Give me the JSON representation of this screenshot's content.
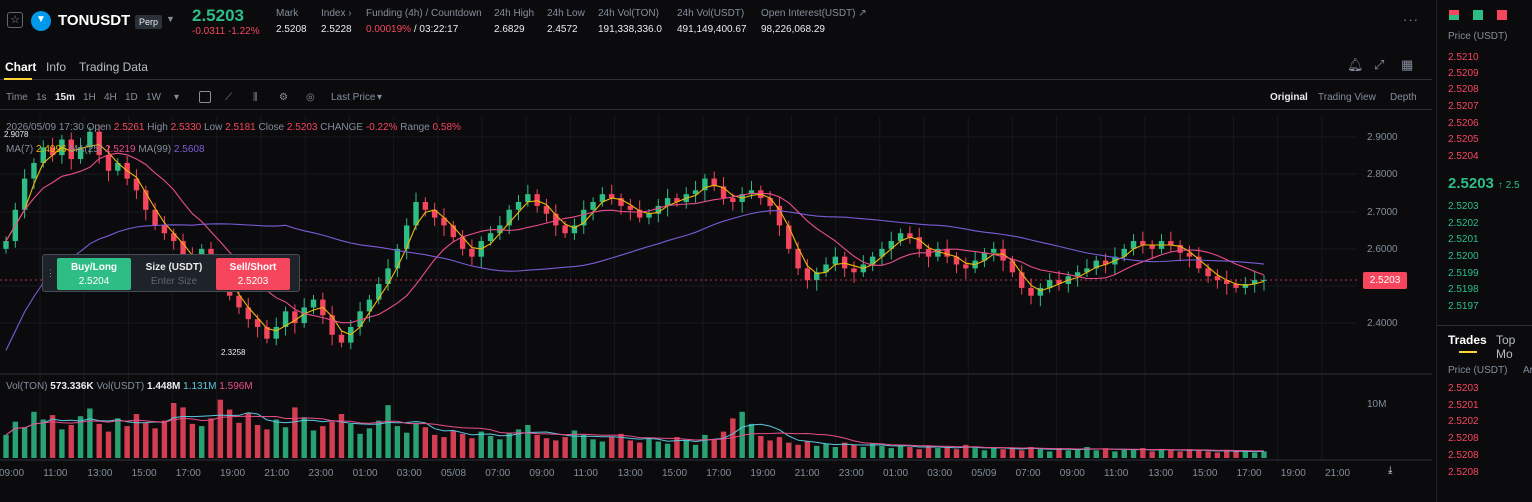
{
  "header": {
    "symbol": "TONUSDT",
    "contract_type": "Perp",
    "last_price": "2.5203",
    "change": "-0.0311 -1.22%",
    "stats": [
      {
        "label": "Mark",
        "value": "2.5208"
      },
      {
        "label": "Index ›",
        "value": "2.5228"
      },
      {
        "label": "Funding (4h) / Countdown",
        "value_rate": "0.00019%",
        "value_countdown": " / 03:22:17"
      },
      {
        "label": "24h High",
        "value": "2.6829"
      },
      {
        "label": "24h Low",
        "value": "2.4572"
      },
      {
        "label": "24h Vol(TON)",
        "value": "191,338,336.0"
      },
      {
        "label": "24h Vol(USDT)",
        "value": "491,149,400.67"
      },
      {
        "label": "Open Interest(USDT) ↗",
        "value": "98,226,068.29"
      }
    ],
    "more": "···"
  },
  "tabs": [
    "Chart",
    "Info",
    "Trading Data"
  ],
  "toolbar": {
    "intervals": [
      "Time",
      "1s",
      "15m",
      "1H",
      "4H",
      "1D",
      "1W"
    ],
    "selected_interval": "15m",
    "price_type": "Last Price",
    "views": [
      "Original",
      "Trading View",
      "Depth"
    ],
    "selected_view": "Original"
  },
  "legend": {
    "ohlc": {
      "date": "2026/05/09 17:30",
      "open_label": "Open",
      "open": "2.5261",
      "high_label": "High",
      "high": "2.5330",
      "low_label": "Low",
      "low": "2.5181",
      "close_label": "Close",
      "close": "2.5203",
      "change_label": "CHANGE",
      "change": "-0.22%",
      "range_label": "Range",
      "range": "0.58%"
    },
    "ma": [
      {
        "label": "MA(7)",
        "value": "2.4996",
        "color": "#f0b90b"
      },
      {
        "label": "MA(25)",
        "value": "2.5219",
        "color": "#e94d8b"
      },
      {
        "label": "MA(99)",
        "value": "2.5608",
        "color": "#7b5cd6"
      }
    ],
    "vol": {
      "ton_label": "Vol(TON)",
      "ton": "573.336K",
      "usdt_label": "Vol(USDT)",
      "usdt": "1.448M",
      "ma1": "1.131M",
      "ma2": "1.596M"
    },
    "high_marker": "2.9078",
    "low_marker": "2.3258"
  },
  "trade_widget": {
    "buy_label": "Buy/Long",
    "buy_price": "2.5204",
    "size_label": "Size (USDT)",
    "size_placeholder": "Enter Size",
    "sell_label": "Sell/Short",
    "sell_price": "2.5203"
  },
  "price_axis": [
    "2.9000",
    "2.8000",
    "2.7000",
    "2.6000",
    "2.5000",
    "2.4000"
  ],
  "current_price_tag": "2.5203",
  "volume_axis": "10M",
  "time_axis": [
    "09:00",
    "11:00",
    "13:00",
    "15:00",
    "17:00",
    "19:00",
    "21:00",
    "23:00",
    "01:00",
    "03:00",
    "05/08",
    "07:00",
    "09:00",
    "11:00",
    "13:00",
    "15:00",
    "17:00",
    "19:00",
    "21:00",
    "23:00",
    "01:00",
    "03:00",
    "05/09",
    "07:00",
    "09:00",
    "11:00",
    "13:00",
    "15:00",
    "17:00",
    "19:00",
    "21:00"
  ],
  "orderbook": {
    "header": "Price (USDT)",
    "asks": [
      "2.5210",
      "2.5209",
      "2.5208",
      "2.5207",
      "2.5206",
      "2.5205",
      "2.5204"
    ],
    "mid": "2.5203",
    "mid_sub": "↑  2.5",
    "bids": [
      "2.5203",
      "2.5202",
      "2.5201",
      "2.5200",
      "2.5199",
      "2.5198",
      "2.5197"
    ]
  },
  "trades": {
    "tabs": [
      "Trades",
      "Top Mo"
    ],
    "header": "Price (USDT)",
    "header2": "Ar",
    "prices": [
      "2.5203",
      "2.5201",
      "2.5202",
      "2.5208",
      "2.5208",
      "2.5208"
    ]
  },
  "chart_data": {
    "type": "candlestick",
    "ylim": [
      2.3,
      2.93
    ],
    "ma_colors": {
      "ma7": "#f0b90b",
      "ma25": "#e94d8b",
      "ma99": "#7b5cd6"
    },
    "colors": {
      "up": "#2ebd85",
      "down": "#f6465d"
    },
    "close_series": [
      2.62,
      2.7,
      2.78,
      2.82,
      2.86,
      2.84,
      2.88,
      2.83,
      2.86,
      2.9,
      2.84,
      2.8,
      2.82,
      2.78,
      2.75,
      2.7,
      2.66,
      2.64,
      2.62,
      2.58,
      2.55,
      2.6,
      2.56,
      2.52,
      2.48,
      2.45,
      2.42,
      2.4,
      2.37,
      2.4,
      2.44,
      2.41,
      2.45,
      2.47,
      2.43,
      2.38,
      2.36,
      2.4,
      2.44,
      2.47,
      2.51,
      2.55,
      2.6,
      2.66,
      2.72,
      2.7,
      2.68,
      2.66,
      2.63,
      2.6,
      2.58,
      2.62,
      2.64,
      2.66,
      2.7,
      2.72,
      2.74,
      2.71,
      2.69,
      2.66,
      2.64,
      2.66,
      2.7,
      2.72,
      2.74,
      2.73,
      2.71,
      2.7,
      2.68,
      2.69,
      2.71,
      2.73,
      2.72,
      2.74,
      2.75,
      2.78,
      2.76,
      2.73,
      2.72,
      2.74,
      2.75,
      2.73,
      2.71,
      2.66,
      2.6,
      2.55,
      2.52,
      2.54,
      2.56,
      2.58,
      2.55,
      2.54,
      2.56,
      2.58,
      2.6,
      2.62,
      2.64,
      2.63,
      2.6,
      2.58,
      2.6,
      2.58,
      2.56,
      2.55,
      2.57,
      2.59,
      2.6,
      2.57,
      2.54,
      2.5,
      2.48,
      2.5,
      2.52,
      2.51,
      2.53,
      2.54,
      2.55,
      2.57,
      2.56,
      2.58,
      2.6,
      2.62,
      2.61,
      2.6,
      2.62,
      2.61,
      2.59,
      2.58,
      2.55,
      2.53,
      2.52,
      2.51,
      2.5,
      2.51,
      2.52,
      2.5203
    ],
    "volume_series": [
      2.1,
      3.3,
      2.8,
      4.2,
      3.5,
      3.9,
      2.6,
      3.0,
      3.8,
      4.5,
      3.1,
      2.4,
      3.6,
      2.9,
      4.0,
      3.2,
      2.7,
      3.4,
      5.0,
      4.6,
      3.1,
      2.9,
      3.6,
      5.3,
      4.4,
      3.2,
      4.1,
      3.0,
      2.6,
      3.5,
      2.8,
      4.6,
      3.7,
      2.5,
      2.9,
      3.3,
      4.0,
      3.1,
      2.2,
      2.7,
      3.4,
      4.8,
      2.9,
      2.3,
      3.2,
      2.8,
      2.1,
      1.9,
      2.5,
      2.2,
      1.8,
      2.4,
      2.0,
      1.7,
      2.3,
      2.6,
      3.0,
      2.1,
      1.8,
      1.6,
      1.9,
      2.5,
      2.1,
      1.7,
      1.5,
      1.9,
      2.2,
      1.6,
      1.4,
      1.8,
      1.5,
      1.3,
      1.9,
      1.6,
      1.2,
      2.1,
      1.7,
      2.4,
      3.6,
      4.2,
      3.1,
      2.0,
      1.6,
      1.9,
      1.4,
      1.2,
      1.5,
      1.1,
      1.3,
      1.0,
      1.4,
      1.2,
      1.0,
      1.3,
      1.1,
      0.9,
      1.2,
      1.0,
      0.8,
      1.1,
      0.9,
      1.0,
      0.8,
      1.2,
      0.9,
      0.7,
      1.0,
      0.8,
      0.9,
      0.7,
      1.0,
      0.8,
      0.6,
      0.9,
      0.7,
      0.8,
      1.0,
      0.7,
      0.9,
      0.6,
      0.8,
      0.7,
      0.9,
      0.6,
      0.8,
      0.7,
      0.6,
      0.8,
      0.7,
      0.6,
      0.5,
      0.7,
      0.6,
      0.6,
      0.5,
      0.6
    ],
    "volume_ylim": [
      0,
      6
    ]
  }
}
